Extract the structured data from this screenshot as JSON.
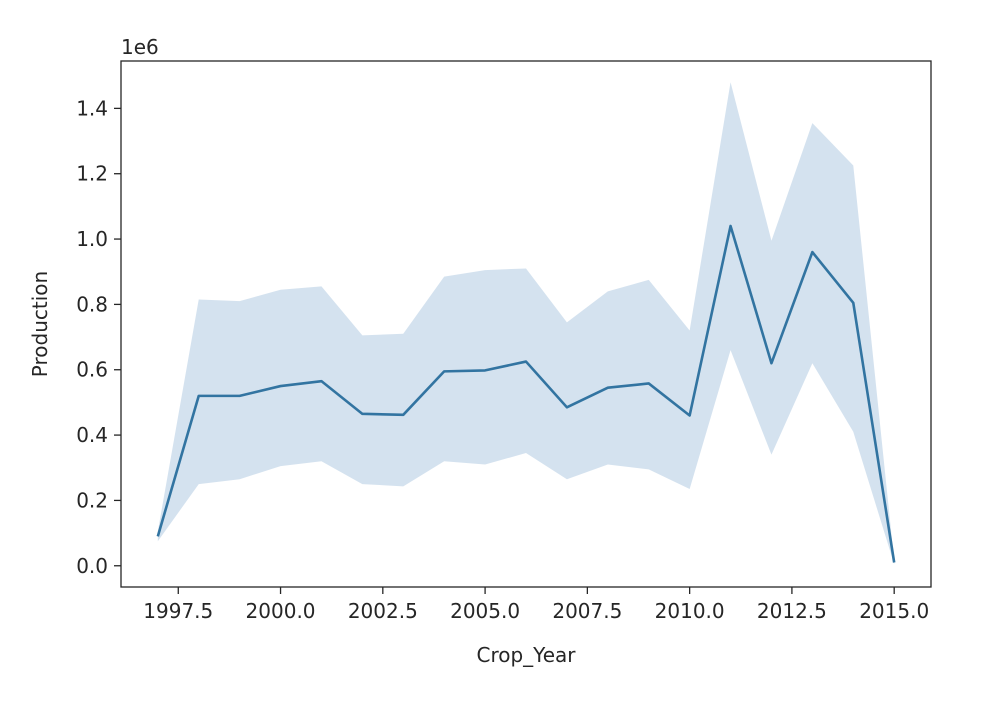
{
  "chart_data": {
    "type": "line",
    "title": "",
    "xlabel": "Crop_Year",
    "ylabel": "Production",
    "y_offset_label": "1e6",
    "xlim": [
      1996.1,
      2015.9
    ],
    "ylim": [
      -0.065,
      1.545
    ],
    "x_ticks": [
      1997.5,
      2000.0,
      2002.5,
      2005.0,
      2007.5,
      2010.0,
      2012.5,
      2015.0
    ],
    "x_tick_labels": [
      "1997.5",
      "2000.0",
      "2002.5",
      "2005.0",
      "2007.5",
      "2010.0",
      "2012.5",
      "2015.0"
    ],
    "y_ticks": [
      0.0,
      0.2,
      0.4,
      0.6,
      0.8,
      1.0,
      1.2,
      1.4
    ],
    "y_tick_labels": [
      "0.0",
      "0.2",
      "0.4",
      "0.6",
      "0.8",
      "1.0",
      "1.2",
      "1.4"
    ],
    "grid": false,
    "line_color": "#3274a1",
    "band_color": "#a9c6e0",
    "series": [
      {
        "x": [
          1997,
          1998,
          1999,
          2000,
          2001,
          2002,
          2003,
          2004,
          2005,
          2006,
          2007,
          2008,
          2009,
          2010,
          2011,
          2012,
          2013,
          2014,
          2015
        ],
        "values": [
          0.09,
          0.52,
          0.52,
          0.55,
          0.565,
          0.465,
          0.462,
          0.595,
          0.598,
          0.625,
          0.485,
          0.545,
          0.558,
          0.46,
          1.04,
          0.62,
          0.96,
          0.805,
          0.01
        ],
        "lower": [
          0.075,
          0.25,
          0.265,
          0.305,
          0.32,
          0.25,
          0.243,
          0.32,
          0.31,
          0.345,
          0.265,
          0.31,
          0.295,
          0.235,
          0.66,
          0.34,
          0.62,
          0.41,
          0.005
        ],
        "upper": [
          0.105,
          0.815,
          0.81,
          0.845,
          0.855,
          0.705,
          0.71,
          0.885,
          0.905,
          0.91,
          0.745,
          0.84,
          0.875,
          0.72,
          1.48,
          0.995,
          1.355,
          1.225,
          0.015
        ]
      }
    ]
  }
}
